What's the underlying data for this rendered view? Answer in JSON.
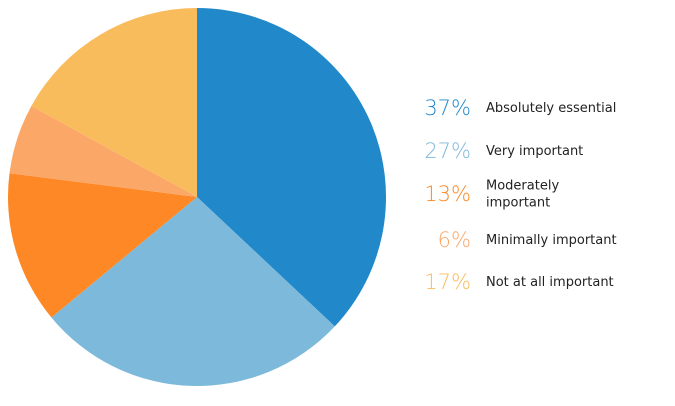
{
  "chart_data": {
    "type": "pie",
    "title": "",
    "start_angle_deg": 0,
    "direction": "clockwise",
    "legend_position": "right",
    "slices": [
      {
        "label": "Absolutely essential",
        "label_lines": [
          "Absolutely essential"
        ],
        "value": 37,
        "display": "37%",
        "color": "#2188c9"
      },
      {
        "label": "Very important",
        "label_lines": [
          "Very important"
        ],
        "value": 27,
        "display": "27%",
        "color": "#7db9da"
      },
      {
        "label": "Moderately important",
        "label_lines": [
          "Moderately",
          "important"
        ],
        "value": 13,
        "display": "13%",
        "color": "#fd8825"
      },
      {
        "label": "Minimally important",
        "label_lines": [
          "Minimally important"
        ],
        "value": 6,
        "display": "6%",
        "color": "#fba767"
      },
      {
        "label": "Not at all important",
        "label_lines": [
          "Not at all important"
        ],
        "value": 17,
        "display": "17%",
        "color": "#f9bc5d"
      }
    ]
  }
}
